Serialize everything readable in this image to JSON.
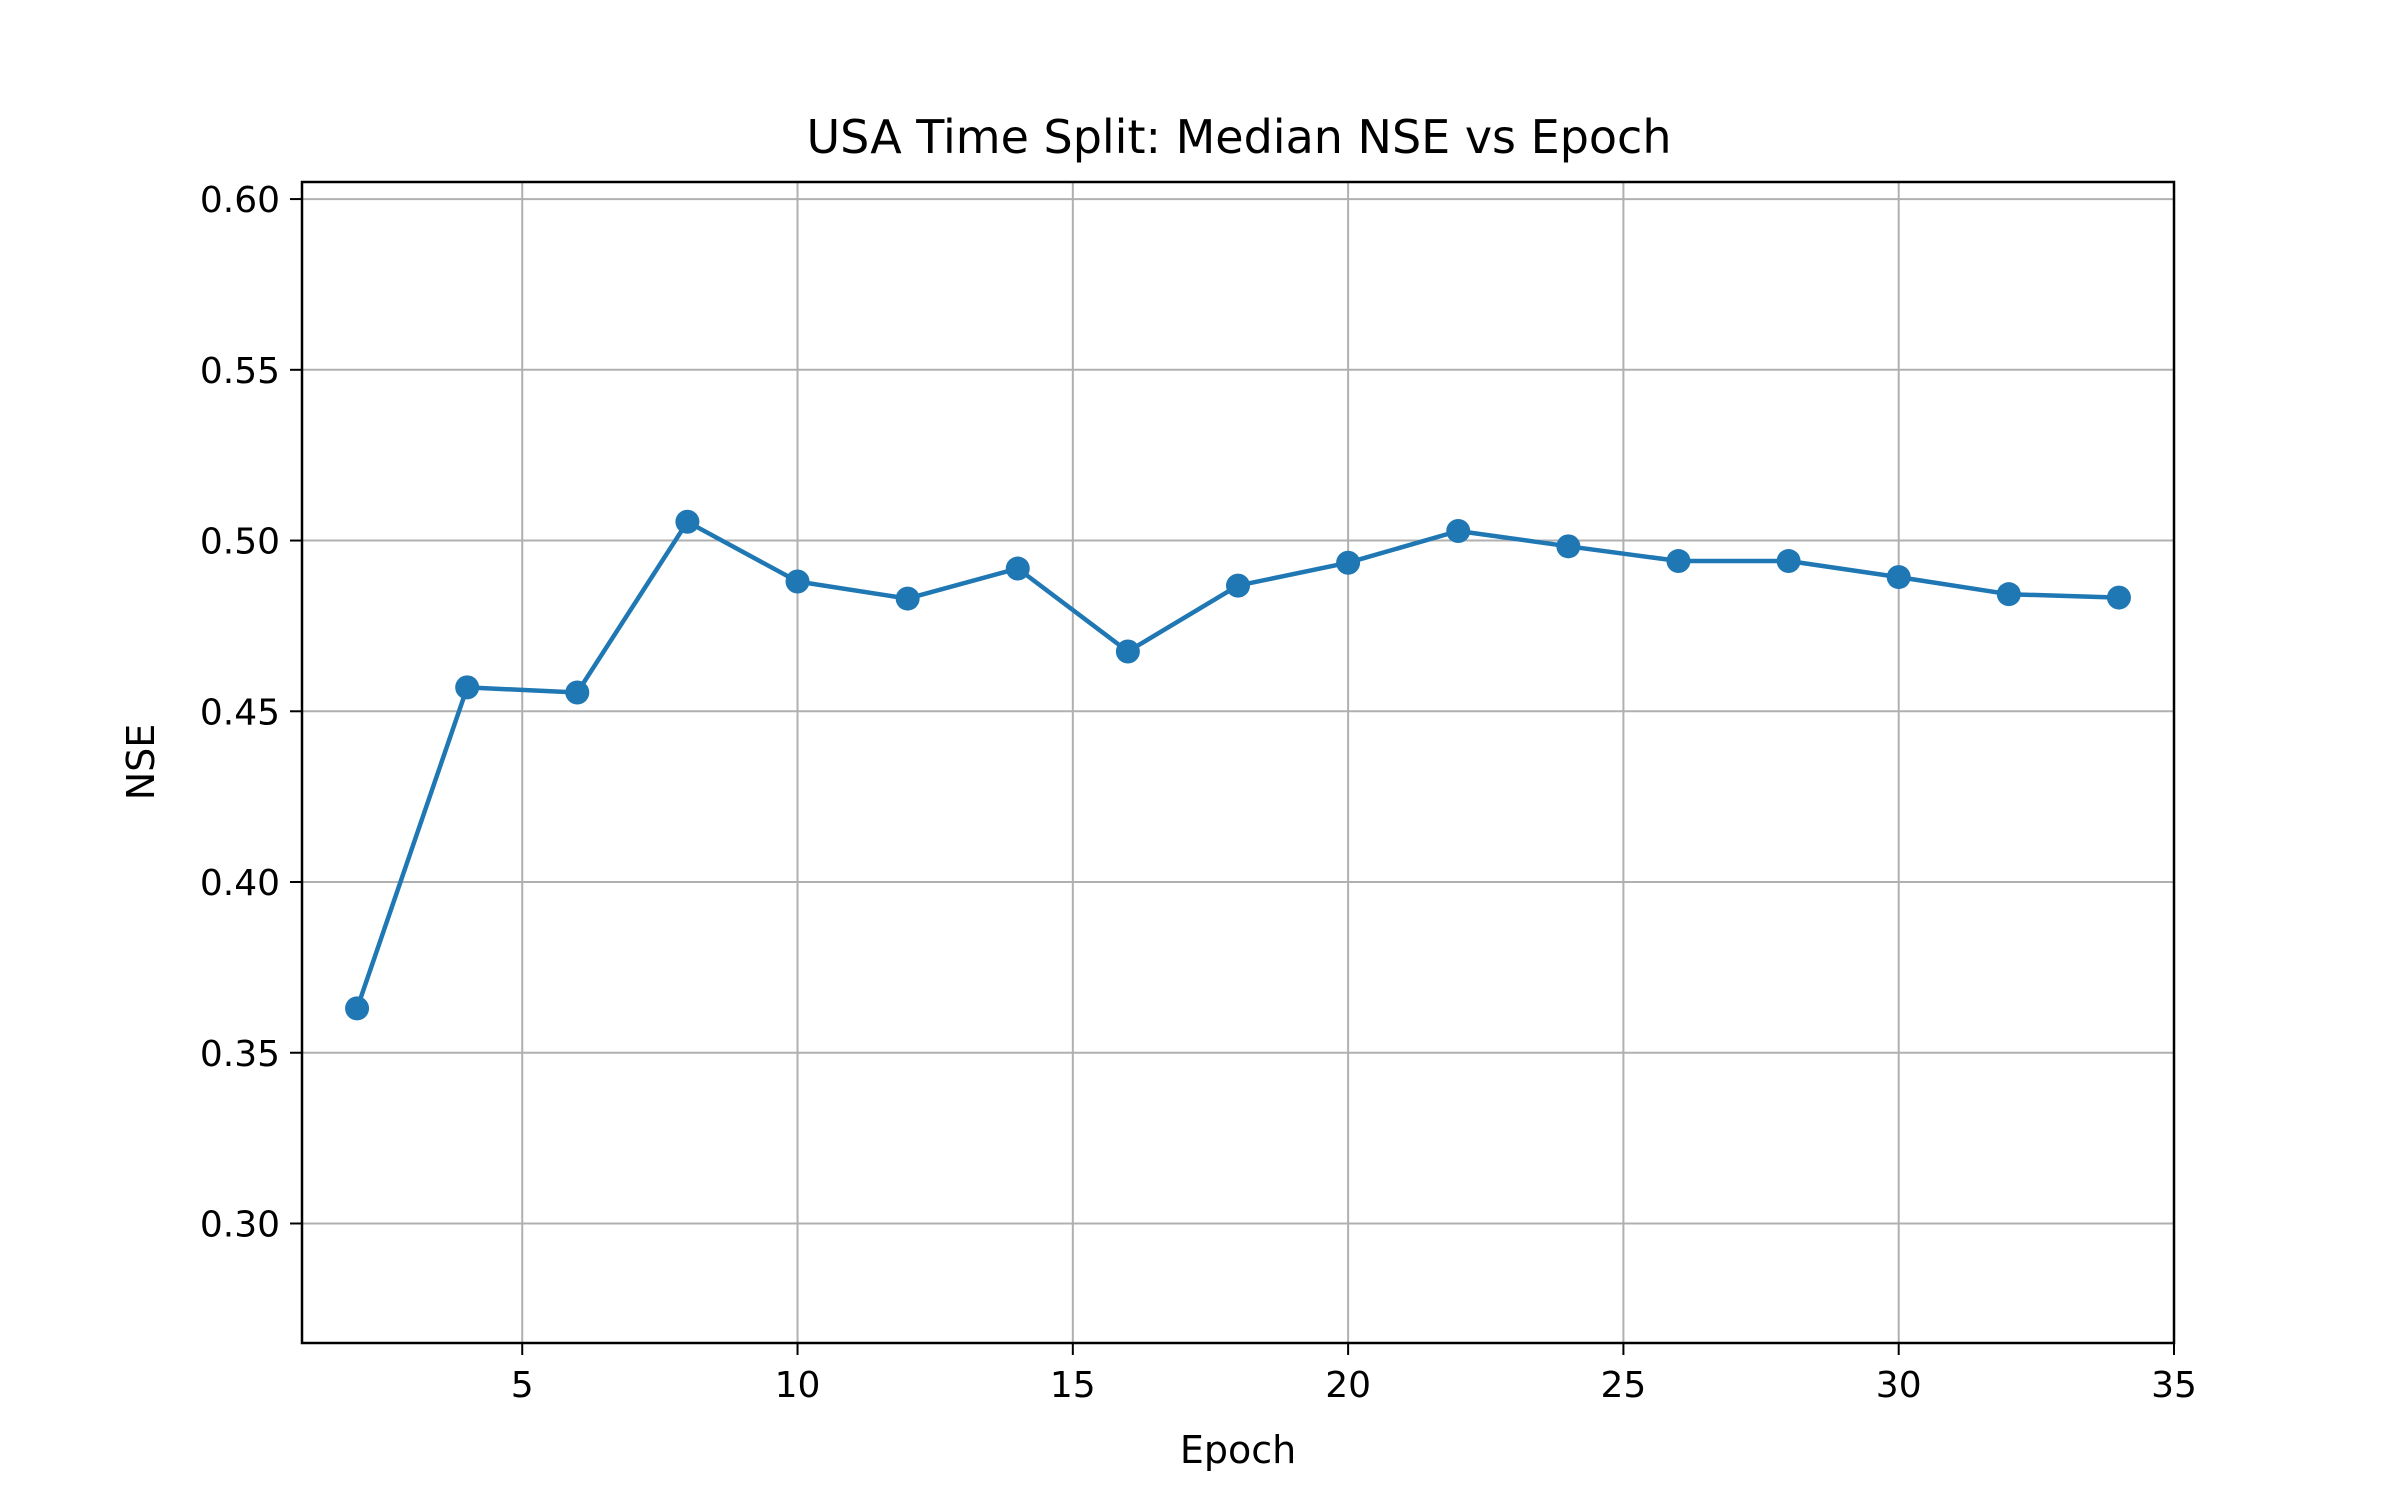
{
  "colors": {
    "series": "#1f77b4",
    "grid": "#b0b0b0",
    "axis": "#000000",
    "background": "#ffffff"
  },
  "chart_data": {
    "type": "line",
    "title": "USA Time Split: Median NSE vs Epoch",
    "xlabel": "Epoch",
    "ylabel": "NSE",
    "xlim": [
      1,
      35
    ],
    "ylim": [
      0.265,
      0.605
    ],
    "grid": true,
    "x_ticks": [
      5,
      10,
      15,
      20,
      25,
      30,
      35
    ],
    "x_tick_labels": [
      "5",
      "10",
      "15",
      "20",
      "25",
      "30",
      "35"
    ],
    "y_ticks": [
      0.3,
      0.35,
      0.4,
      0.45,
      0.5,
      0.55,
      0.6
    ],
    "y_tick_labels": [
      "0.30",
      "0.35",
      "0.40",
      "0.45",
      "0.50",
      "0.55",
      "0.60"
    ],
    "series": [
      {
        "name": "Median NSE",
        "marker": "circle",
        "x": [
          2,
          4,
          6,
          8,
          10,
          12,
          14,
          16,
          18,
          20,
          22,
          24,
          26,
          28,
          30,
          32,
          34
        ],
        "values": [
          0.363,
          0.457,
          0.4555,
          0.5055,
          0.488,
          0.483,
          0.4918,
          0.4675,
          0.4868,
          0.4935,
          0.5028,
          0.4983,
          0.494,
          0.494,
          0.4893,
          0.4843,
          0.4833
        ]
      }
    ]
  }
}
